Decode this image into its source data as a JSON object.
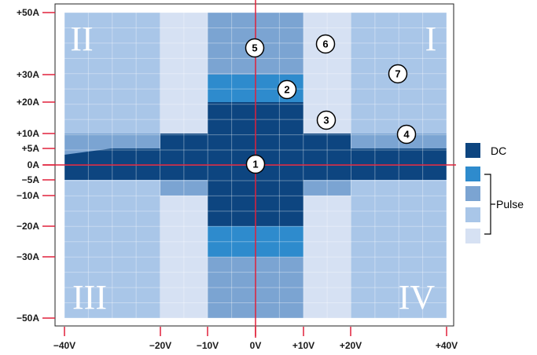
{
  "diagram": {
    "x_axis": {
      "ticks": [
        {
          "value": -40,
          "label": "−40V"
        },
        {
          "value": -20,
          "label": "−20V"
        },
        {
          "value": -10,
          "label": "−10V"
        },
        {
          "value": 0,
          "label": "0V"
        },
        {
          "value": 10,
          "label": "+10V"
        },
        {
          "value": 20,
          "label": "+20V"
        },
        {
          "value": 40,
          "label": "+40V"
        }
      ]
    },
    "y_axis": {
      "ticks": [
        {
          "value": 50,
          "label": "+50A"
        },
        {
          "value": 30,
          "label": "+30A"
        },
        {
          "value": 20,
          "label": "+20A"
        },
        {
          "value": 10,
          "label": "+10A"
        },
        {
          "value": 5,
          "label": "+5A"
        },
        {
          "value": 0,
          "label": "0A"
        },
        {
          "value": -5,
          "label": "−5A"
        },
        {
          "value": -10,
          "label": "−10A"
        },
        {
          "value": -20,
          "label": "−20A"
        },
        {
          "value": -30,
          "label": "−30A"
        },
        {
          "value": -50,
          "label": "−50A"
        }
      ]
    },
    "quadrant_labels": [
      {
        "id": "I",
        "text": "I"
      },
      {
        "id": "II",
        "text": "II"
      },
      {
        "id": "III",
        "text": "III"
      },
      {
        "id": "IV",
        "text": "IV"
      }
    ],
    "region_markers": [
      "1",
      "2",
      "3",
      "4",
      "5",
      "6",
      "7"
    ],
    "legend": {
      "dc_label": "DC",
      "pulse_label": "Pulse"
    },
    "colors": {
      "dc": "#0d4580",
      "pulse_1": "#2e8bcd",
      "pulse_2": "#7ba4d2",
      "pulse_3": "#a9c6e8",
      "pulse_4": "#d6e1f3",
      "axis": "#e0203a"
    }
  }
}
